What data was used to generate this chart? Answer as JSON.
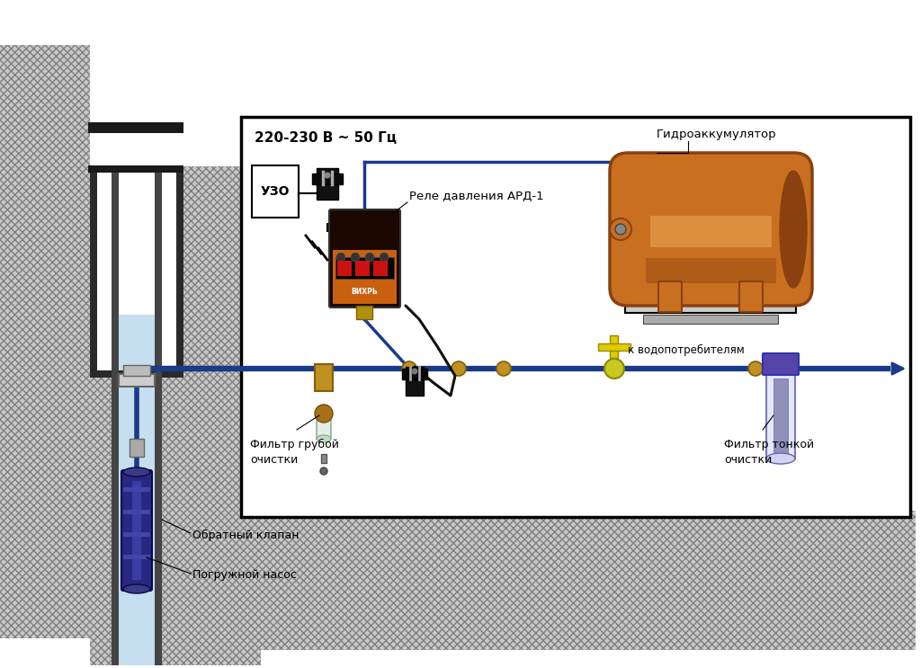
{
  "bg_color": "#e8e8e8",
  "pipe_color": "#1a3a8a",
  "title_220": "220-230 В ~ 50 Гц",
  "label_uzo": "УЗО",
  "label_relay": "Реле давления АРД-1",
  "label_hydro": "Гидроаккумулятор",
  "label_filter_coarse": "Фильтр грубой\nочистки",
  "label_filter_fine": "Фильтр тонкой\nочистки",
  "label_consumers": "к водопотребителям",
  "label_check_valve": "Обратный клапан",
  "label_pump": "Погружной насос",
  "tank_dark": "#8B4010",
  "tank_mid": "#C87020",
  "tank_light": "#E8A050",
  "relay_dark": "#1a0800",
  "relay_orange": "#C86010",
  "soil_face": "#c8c8c8",
  "soil_edge": "#808080"
}
